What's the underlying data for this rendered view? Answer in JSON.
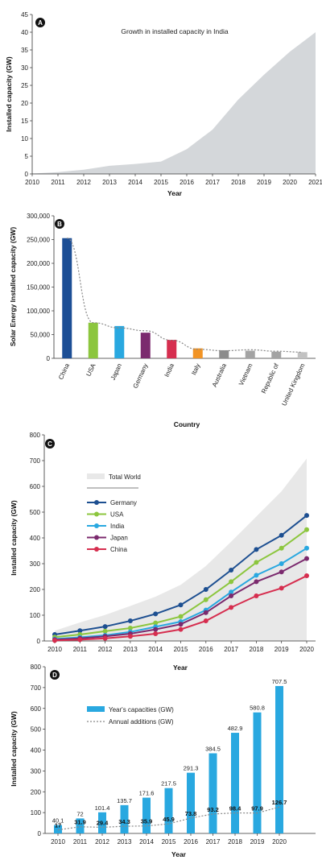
{
  "chart_data": [
    {
      "label": "A",
      "type": "area",
      "title": "Growth in installed capacity in India",
      "xlabel": "Year",
      "ylabel": "Installed capacity (GW)",
      "x": [
        2010,
        2011,
        2012,
        2013,
        2014,
        2015,
        2016,
        2017,
        2018,
        2019,
        2020,
        2021
      ],
      "values": [
        0.1,
        0.5,
        1.2,
        2.3,
        2.8,
        3.5,
        7,
        12.5,
        21,
        28,
        34.5,
        40
      ],
      "xlim": [
        2010,
        2021
      ],
      "ylim": [
        0,
        45
      ],
      "yticks": [
        0,
        5,
        10,
        15,
        20,
        25,
        30,
        35,
        40,
        45
      ],
      "xticks": [
        "2010",
        "2011",
        "2012",
        "2013",
        "2014",
        "2015",
        "2016",
        "2017",
        "2018",
        "2019",
        "2020",
        "2021"
      ],
      "fill_color": "#d4d7da"
    },
    {
      "label": "B",
      "type": "bar",
      "xlabel": "Country",
      "ylabel": "Solar Energy Installed capacity (GW)",
      "categories": [
        "China",
        "USA",
        "Japan",
        "Germany",
        "India",
        "Italy",
        "Australia",
        "Vietnam",
        "Republic of",
        "United Kingdom"
      ],
      "values": [
        253000,
        75000,
        68000,
        54000,
        39000,
        21000,
        17000,
        16000,
        14000,
        13000
      ],
      "colors": [
        "#1c4e95",
        "#8cc63e",
        "#29a8e0",
        "#7b2a6e",
        "#d62e4f",
        "#f29425",
        "#8c8c8c",
        "#a3a3a3",
        "#a3a3a3",
        "#c2c2c2"
      ],
      "trend_values": [
        253000,
        75000,
        64000,
        58000,
        38000,
        19000,
        16000,
        18000,
        15000,
        13000
      ],
      "ylim": [
        0,
        300000
      ],
      "yticks": [
        "0",
        "50,000",
        "100,000",
        "150,000",
        "200,000",
        "250,000",
        "300,000"
      ]
    },
    {
      "label": "C",
      "type": "line",
      "xlabel": "Year",
      "ylabel": "Installed capacity (GW)",
      "x": [
        2010,
        2011,
        2012,
        2013,
        2014,
        2015,
        2016,
        2017,
        2018,
        2019,
        2020
      ],
      "ylim": [
        0,
        800
      ],
      "yticks": [
        0,
        100,
        200,
        300,
        400,
        500,
        600,
        700,
        800
      ],
      "background": {
        "name": "Total World",
        "values": [
          40,
          72,
          101,
          136,
          172,
          218,
          291,
          385,
          483,
          581,
          708
        ],
        "color": "#e8e8e8"
      },
      "series": [
        {
          "name": "Germany",
          "color": "#1d4f91",
          "values": [
            25,
            40,
            56,
            78,
            105,
            140,
            200,
            275,
            355,
            410,
            487
          ]
        },
        {
          "name": "USA",
          "color": "#8cc63e",
          "values": [
            15,
            25,
            38,
            50,
            70,
            95,
            160,
            230,
            305,
            360,
            432
          ]
        },
        {
          "name": "India",
          "color": "#29a8e0",
          "values": [
            8,
            14,
            22,
            35,
            55,
            75,
            120,
            190,
            255,
            300,
            360
          ]
        },
        {
          "name": "Japan",
          "color": "#7b2a6e",
          "values": [
            5,
            10,
            18,
            28,
            45,
            65,
            110,
            175,
            230,
            268,
            320
          ]
        },
        {
          "name": "China",
          "color": "#d62e4f",
          "values": [
            2,
            5,
            10,
            18,
            28,
            45,
            78,
            130,
            175,
            205,
            253
          ]
        }
      ]
    },
    {
      "label": "D",
      "type": "bar",
      "xlabel": "Year",
      "ylabel": "Installed capacity (GW)",
      "categories": [
        "2010",
        "2011",
        "2012",
        "2013",
        "2014",
        "2015",
        "2016",
        "2017",
        "2018",
        "2019",
        "2020"
      ],
      "ylim": [
        0,
        800
      ],
      "yticks": [
        0,
        100,
        200,
        300,
        400,
        500,
        600,
        700,
        800
      ],
      "series": [
        {
          "name": "Year's capacities (GW)",
          "type": "bar",
          "color": "#29a8e0",
          "values": [
            40.1,
            72,
            101.4,
            135.7,
            171.6,
            217.5,
            291.3,
            384.5,
            482.9,
            580.8,
            707.5
          ],
          "labels": [
            "40.1",
            "72",
            "101.4",
            "135.7",
            "171.6",
            "217.5",
            "291.3",
            "384.5",
            "482.9",
            "580.8",
            "707.5"
          ]
        },
        {
          "name": "Annual additions (GW)",
          "type": "line",
          "color": "#888888",
          "values": [
            17,
            31.9,
            29.4,
            34.3,
            35.9,
            45.9,
            73.8,
            93.2,
            98.4,
            97.9,
            126.7
          ],
          "labels": [
            "17",
            "31.9",
            "29.4",
            "34.3",
            "35.9",
            "45.9",
            "73.8",
            "93.2",
            "98.4",
            "97.9",
            "126.7"
          ]
        }
      ]
    }
  ]
}
